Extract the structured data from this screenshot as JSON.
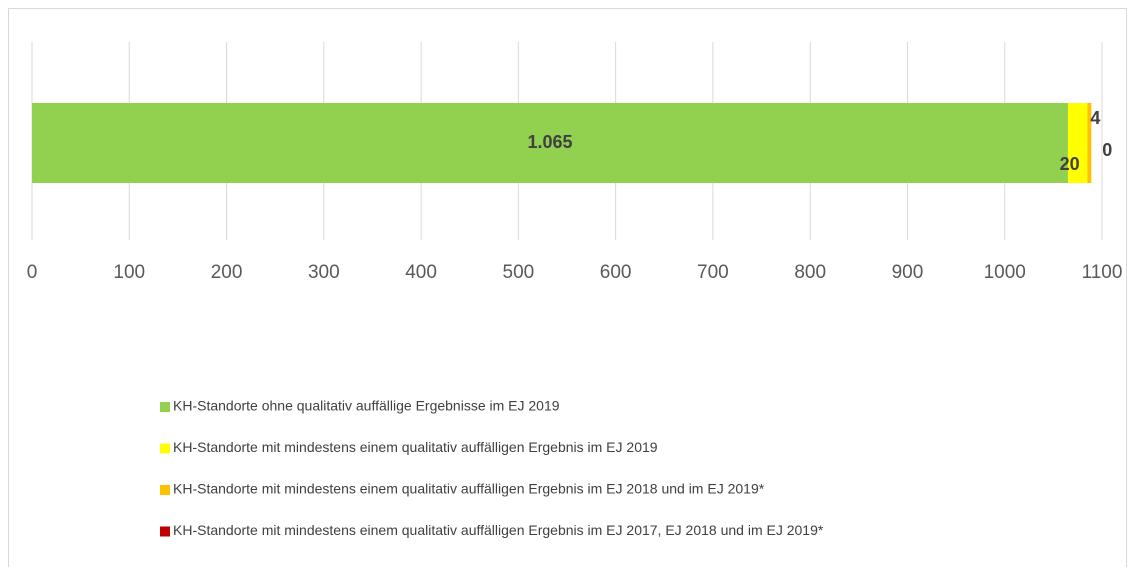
{
  "chart_data": {
    "type": "stacked-barh",
    "categories": [
      null
    ],
    "series": [
      {
        "name": "KH-Standorte ohne qualitativ auffällige Ergebnisse im EJ 2019",
        "color": "#92d050",
        "values": [
          1065
        ],
        "value_labels": [
          "1.065"
        ]
      },
      {
        "name": "KH-Standorte mit mindestens einem qualitativ auffälligen Ergebnis im EJ 2019",
        "color": "#ffff00",
        "values": [
          20
        ]
      },
      {
        "name": "KH-Standorte mit mindestens einem qualitativ auffälligen Ergebnis im EJ 2018 und im EJ 2019*",
        "color": "#ffc000",
        "values": [
          4
        ]
      },
      {
        "name": "KH-Standorte mit mindestens einem qualitativ auffälligen Ergebnis im EJ 2017, EJ 2018 und im EJ 2019*",
        "color": "#c00000",
        "values": [
          0
        ]
      }
    ],
    "xlim": [
      0,
      1100
    ],
    "xticks": [
      0,
      100,
      200,
      300,
      400,
      500,
      600,
      700,
      800,
      900,
      1000,
      1100
    ],
    "grid": true,
    "legend": "bottom"
  }
}
